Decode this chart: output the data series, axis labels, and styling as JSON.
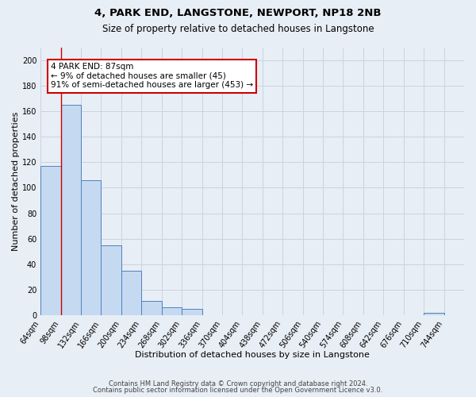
{
  "title": "4, PARK END, LANGSTONE, NEWPORT, NP18 2NB",
  "subtitle": "Size of property relative to detached houses in Langstone",
  "xlabel": "Distribution of detached houses by size in Langstone",
  "ylabel": "Number of detached properties",
  "bin_labels": [
    "64sqm",
    "98sqm",
    "132sqm",
    "166sqm",
    "200sqm",
    "234sqm",
    "268sqm",
    "302sqm",
    "336sqm",
    "370sqm",
    "404sqm",
    "438sqm",
    "472sqm",
    "506sqm",
    "540sqm",
    "574sqm",
    "608sqm",
    "642sqm",
    "676sqm",
    "710sqm",
    "744sqm"
  ],
  "bar_heights": [
    117,
    165,
    106,
    55,
    35,
    11,
    6,
    5,
    0,
    0,
    0,
    0,
    0,
    0,
    0,
    0,
    0,
    0,
    0,
    2,
    0
  ],
  "bar_color": "#c5d9f1",
  "bar_edge_color": "#4f81bd",
  "ylim": [
    0,
    210
  ],
  "yticks": [
    0,
    20,
    40,
    60,
    80,
    100,
    120,
    140,
    160,
    180,
    200
  ],
  "grid_color": "#c8d4e3",
  "background_color": "#e8eef5",
  "annotation_line1": "4 PARK END: 87sqm",
  "annotation_line2": "← 9% of detached houses are smaller (45)",
  "annotation_line3": "91% of semi-detached houses are larger (453) →",
  "annotation_box_color": "#ffffff",
  "annotation_box_edge_color": "#cc0000",
  "red_line_x": 1.0,
  "footer_line1": "Contains HM Land Registry data © Crown copyright and database right 2024.",
  "footer_line2": "Contains public sector information licensed under the Open Government Licence v3.0.",
  "title_fontsize": 9.5,
  "subtitle_fontsize": 8.5,
  "xlabel_fontsize": 8,
  "ylabel_fontsize": 8,
  "tick_fontsize": 7,
  "annotation_fontsize": 7.5,
  "footer_fontsize": 6
}
